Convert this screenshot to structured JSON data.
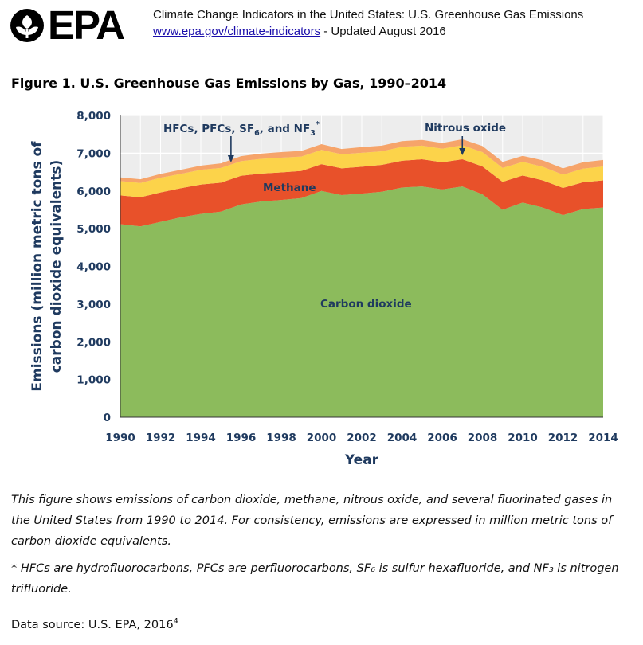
{
  "header": {
    "logo_text": "EPA",
    "title": "Climate Change Indicators in the United States: U.S. Greenhouse Gas Emissions",
    "link_text": "www.epa.gov/climate-indicators",
    "updated": " - Updated August 2016"
  },
  "figure_title": "Figure 1. U.S. Greenhouse Gas Emissions by Gas, 1990–2014",
  "caption": "This figure shows emissions of carbon dioxide, methane, nitrous oxide, and several fluorinated gases in the United States from 1990 to 2014. For consistency, emissions are expressed in million metric tons of carbon dioxide equivalents.",
  "footnote": "* HFCs are hydrofluorocarbons, PFCs are perfluorocarbons, SF₆ is sulfur hexafluoride, and NF₃ is nitrogen trifluoride.",
  "source": {
    "text": "Data source: U.S. EPA, 2016",
    "sup": "4"
  },
  "colors": {
    "carbon_dioxide": "#8cbb5c",
    "methane": "#e8512a",
    "nitrous_oxide": "#fcd34a",
    "fluorinated": "#f6a46a",
    "plot_background": "#ededed",
    "axis_text": "#1f3a5f"
  },
  "chart_data": {
    "type": "area",
    "stacked": true,
    "x": [
      1990,
      1991,
      1992,
      1993,
      1994,
      1995,
      1996,
      1997,
      1998,
      1999,
      2000,
      2001,
      2002,
      2003,
      2004,
      2005,
      2006,
      2007,
      2008,
      2009,
      2010,
      2011,
      2012,
      2013,
      2014
    ],
    "series": [
      {
        "name": "Carbon dioxide",
        "values": [
          5120,
          5060,
          5180,
          5300,
          5390,
          5450,
          5640,
          5720,
          5760,
          5810,
          6000,
          5890,
          5930,
          5980,
          6090,
          6120,
          6040,
          6120,
          5910,
          5500,
          5690,
          5560,
          5360,
          5520,
          5560
        ]
      },
      {
        "name": "Methane",
        "values": [
          760,
          770,
          780,
          770,
          780,
          770,
          760,
          740,
          730,
          720,
          710,
          710,
          710,
          710,
          710,
          720,
          720,
          720,
          740,
          740,
          720,
          720,
          720,
          710,
          720
        ]
      },
      {
        "name": "Nitrous oxide",
        "values": [
          380,
          380,
          390,
          380,
          390,
          390,
          390,
          390,
          390,
          380,
          380,
          370,
          370,
          360,
          370,
          360,
          360,
          370,
          380,
          370,
          360,
          360,
          350,
          360,
          370
        ]
      },
      {
        "name": "HFCs, PFCs, SF₆, and NF₃*",
        "values": [
          100,
          100,
          100,
          110,
          110,
          120,
          130,
          140,
          150,
          150,
          150,
          140,
          150,
          150,
          150,
          150,
          150,
          160,
          160,
          160,
          160,
          170,
          170,
          170,
          170
        ]
      }
    ],
    "annotations": {
      "fluorinated": {
        "text": "HFCs, PFCs, SF",
        "sub": "6",
        "mid": ", and NF",
        "sub2": "3",
        "sup": "*",
        "arrow_year": 1995.5
      },
      "nitrous": {
        "text": "Nitrous oxide",
        "arrow_year": 2007
      },
      "methane": {
        "text": "Methane"
      },
      "co2": {
        "text": "Carbon dioxide"
      }
    },
    "xlabel": "Year",
    "ylabel_line1": "Emissions (million metric tons of",
    "ylabel_line2": "carbon dioxide equivalents)",
    "ylim": [
      0,
      8000
    ],
    "yticks": [
      "0",
      "1,000",
      "2,000",
      "3,000",
      "4,000",
      "5,000",
      "6,000",
      "7,000",
      "8,000"
    ],
    "xticks": [
      "1990",
      "1992",
      "1994",
      "1996",
      "1998",
      "2000",
      "2002",
      "2004",
      "2006",
      "2008",
      "2010",
      "2012",
      "2014"
    ],
    "grid": true,
    "legend": "none"
  }
}
